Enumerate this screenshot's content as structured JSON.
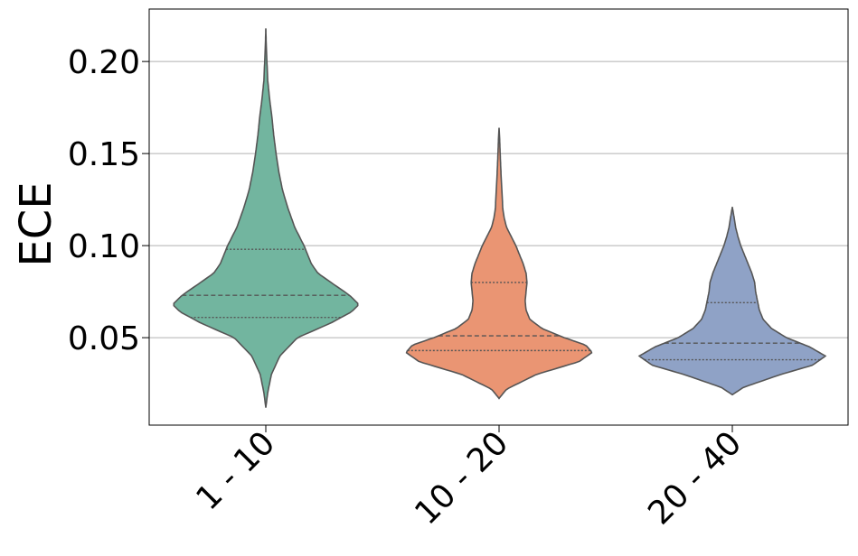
{
  "chart_data": {
    "type": "violin",
    "title": "",
    "xlabel": "",
    "ylabel": "ECE",
    "ylim": [
      0.0025,
      0.2285
    ],
    "yticks": [
      0.05,
      0.1,
      0.15,
      0.2
    ],
    "ytick_labels": [
      "0.05",
      "0.10",
      "0.15",
      "0.20"
    ],
    "grid": "y",
    "categories": [
      "1 - 10",
      "10 - 20",
      "20 - 40"
    ],
    "colors": [
      "#72b59f",
      "#ea9573",
      "#8fa2c6"
    ],
    "outline_color": "#555555",
    "series": [
      {
        "category": "1 - 10",
        "min": 0.012,
        "max": 0.218,
        "q1": 0.061,
        "median": 0.073,
        "q3": 0.098,
        "density": [
          [
            0.012,
            0.0
          ],
          [
            0.02,
            0.02
          ],
          [
            0.03,
            0.06
          ],
          [
            0.04,
            0.15
          ],
          [
            0.05,
            0.34
          ],
          [
            0.058,
            0.7
          ],
          [
            0.064,
            0.92
          ],
          [
            0.068,
            1.0
          ],
          [
            0.073,
            0.9
          ],
          [
            0.08,
            0.7
          ],
          [
            0.085,
            0.56
          ],
          [
            0.09,
            0.49
          ],
          [
            0.095,
            0.45
          ],
          [
            0.1,
            0.41
          ],
          [
            0.105,
            0.36
          ],
          [
            0.11,
            0.31
          ],
          [
            0.12,
            0.24
          ],
          [
            0.13,
            0.18
          ],
          [
            0.14,
            0.14
          ],
          [
            0.15,
            0.11
          ],
          [
            0.16,
            0.085
          ],
          [
            0.17,
            0.065
          ],
          [
            0.18,
            0.04
          ],
          [
            0.19,
            0.02
          ],
          [
            0.2,
            0.012
          ],
          [
            0.21,
            0.004
          ],
          [
            0.218,
            0.0
          ]
        ]
      },
      {
        "category": "10 - 20",
        "min": 0.017,
        "max": 0.164,
        "q1": 0.043,
        "median": 0.051,
        "q3": 0.08,
        "density": [
          [
            0.017,
            0.0
          ],
          [
            0.022,
            0.08
          ],
          [
            0.03,
            0.4
          ],
          [
            0.037,
            0.86
          ],
          [
            0.042,
            1.0
          ],
          [
            0.046,
            0.93
          ],
          [
            0.05,
            0.7
          ],
          [
            0.055,
            0.46
          ],
          [
            0.06,
            0.33
          ],
          [
            0.065,
            0.29
          ],
          [
            0.07,
            0.28
          ],
          [
            0.075,
            0.29
          ],
          [
            0.08,
            0.3
          ],
          [
            0.085,
            0.29
          ],
          [
            0.09,
            0.26
          ],
          [
            0.095,
            0.22
          ],
          [
            0.1,
            0.18
          ],
          [
            0.105,
            0.13
          ],
          [
            0.11,
            0.08
          ],
          [
            0.115,
            0.055
          ],
          [
            0.12,
            0.04
          ],
          [
            0.13,
            0.03
          ],
          [
            0.14,
            0.02
          ],
          [
            0.15,
            0.012
          ],
          [
            0.158,
            0.006
          ],
          [
            0.164,
            0.0
          ]
        ]
      },
      {
        "category": "20 - 40",
        "min": 0.019,
        "max": 0.121,
        "q1": 0.038,
        "median": 0.047,
        "q3": 0.069,
        "density": [
          [
            0.019,
            0.0
          ],
          [
            0.023,
            0.12
          ],
          [
            0.03,
            0.52
          ],
          [
            0.035,
            0.86
          ],
          [
            0.04,
            1.0
          ],
          [
            0.045,
            0.83
          ],
          [
            0.05,
            0.58
          ],
          [
            0.055,
            0.42
          ],
          [
            0.06,
            0.33
          ],
          [
            0.065,
            0.29
          ],
          [
            0.07,
            0.27
          ],
          [
            0.075,
            0.25
          ],
          [
            0.08,
            0.24
          ],
          [
            0.085,
            0.21
          ],
          [
            0.09,
            0.17
          ],
          [
            0.095,
            0.13
          ],
          [
            0.1,
            0.09
          ],
          [
            0.105,
            0.06
          ],
          [
            0.11,
            0.035
          ],
          [
            0.115,
            0.02
          ],
          [
            0.121,
            0.0
          ]
        ]
      }
    ]
  }
}
